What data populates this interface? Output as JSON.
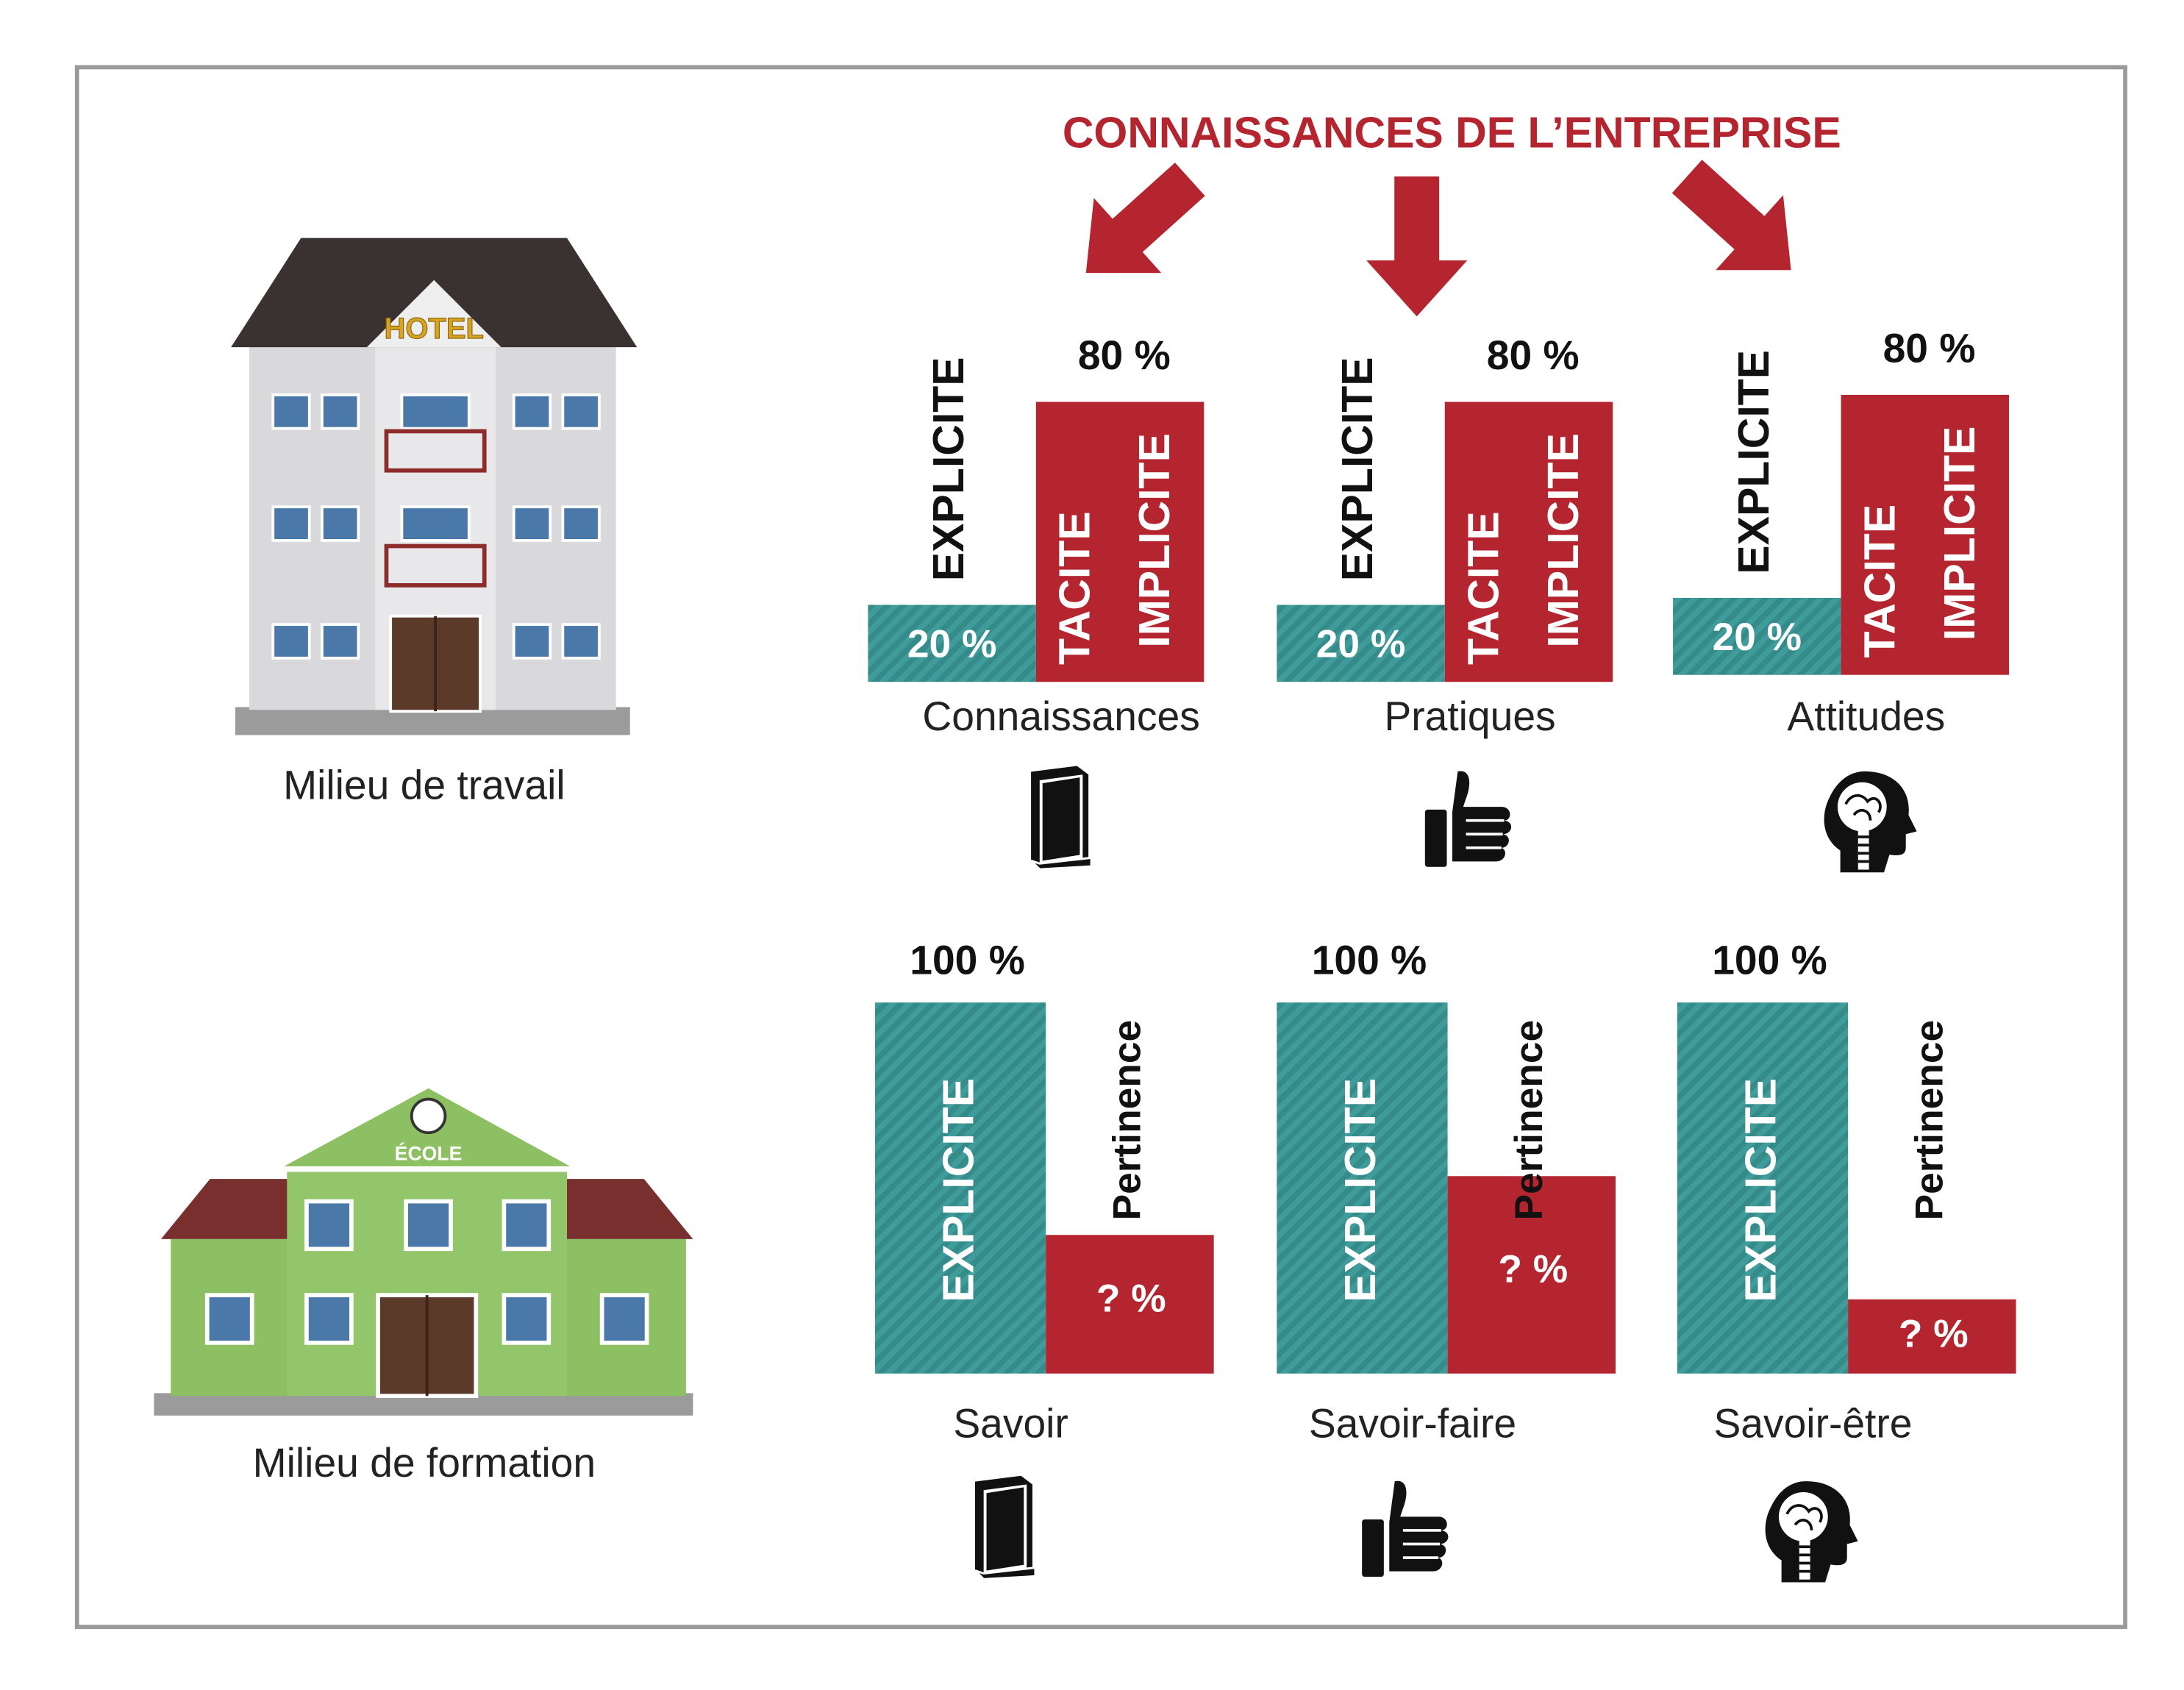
{
  "title": "CONNAISSANCES DE L’ENTREPRISE",
  "places": [
    {
      "label": "Milieu de travail",
      "sign": "HOTEL"
    },
    {
      "label": "Milieu de formation",
      "sign": "ÉCOLE"
    }
  ],
  "top_panels": [
    {
      "category": "Connaissances",
      "explicit_label": "EXPLICITE",
      "explicit_value": "20 %",
      "tacit_labels": [
        "TACITE",
        "IMPLICITE"
      ],
      "tacit_value": "80 %"
    },
    {
      "category": "Pratiques",
      "explicit_label": "EXPLICITE",
      "explicit_value": "20 %",
      "tacit_labels": [
        "TACITE",
        "IMPLICITE"
      ],
      "tacit_value": "80 %"
    },
    {
      "category": "Attitudes",
      "explicit_label": "EXPLICITE",
      "explicit_value": "20 %",
      "tacit_labels": [
        "TACITE",
        "IMPLICITE"
      ],
      "tacit_value": "80 %"
    }
  ],
  "bottom_panels": [
    {
      "category": "Savoir",
      "explicit_label": "EXPLICITE",
      "explicit_value": "100 %",
      "relevance_label": "Pertinence",
      "relevance_value": "? %"
    },
    {
      "category": "Savoir-faire",
      "explicit_label": "EXPLICITE",
      "explicit_value": "100 %",
      "relevance_label": "Pertinence",
      "relevance_value": "? %"
    },
    {
      "category": "Savoir-être",
      "explicit_label": "EXPLICITE",
      "explicit_value": "100 %",
      "relevance_label": "Pertinence",
      "relevance_value": "? %"
    }
  ]
}
